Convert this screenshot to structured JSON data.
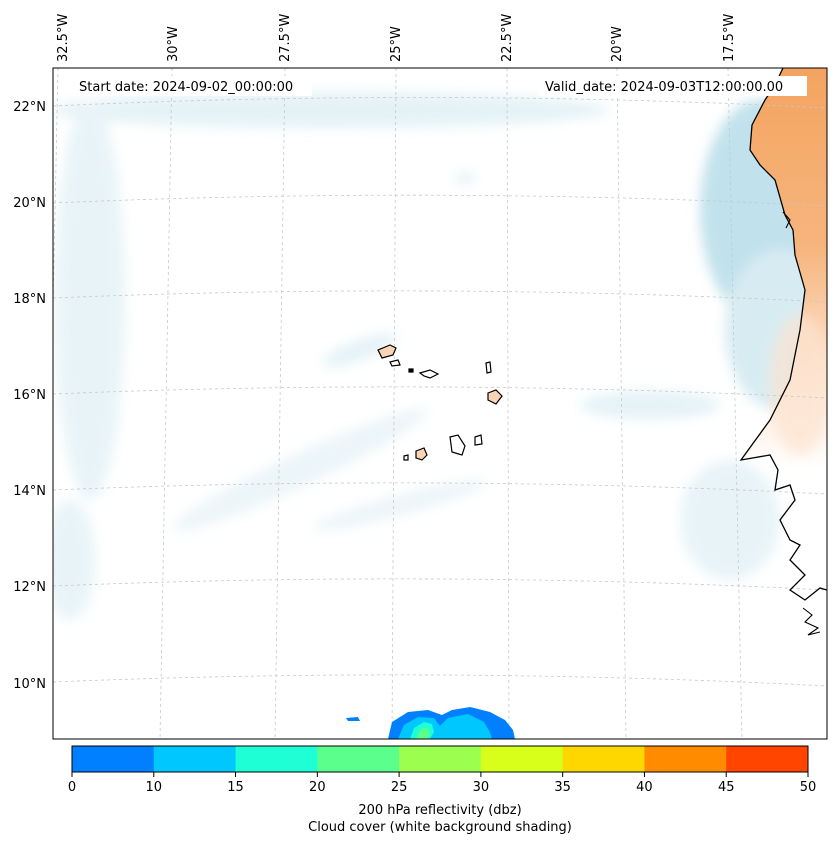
{
  "map": {
    "start_date": "Start date: 2024-09-02_00:00:00",
    "valid_date": "Valid_date: 2024-09-03T12:00:00.00",
    "lon_ticks": [
      "32.5°W",
      "30°W",
      "27.5°W",
      "25°W",
      "22.5°W",
      "20°W",
      "17.5°W"
    ],
    "lat_ticks": [
      "22°N",
      "20°N",
      "18°N",
      "16°N",
      "14°N",
      "12°N",
      "10°N"
    ],
    "colors": {
      "land_africa": "#f4a460",
      "island_fill": "#f9d5b5",
      "cloud": "#a9d5e3",
      "grid": "#bbbbbb"
    }
  },
  "colorbar": {
    "ticks": [
      "0",
      "10",
      "15",
      "20",
      "25",
      "30",
      "35",
      "40",
      "45",
      "50"
    ],
    "colors": [
      "#0080ff",
      "#00c8ff",
      "#1effd6",
      "#5aff8c",
      "#9cff50",
      "#d8ff1a",
      "#ffd700",
      "#ff8c00",
      "#ff4500"
    ],
    "label_line1": "200 hPa reflectivity (dbz)",
    "label_line2": "Cloud cover (white background shading)"
  }
}
